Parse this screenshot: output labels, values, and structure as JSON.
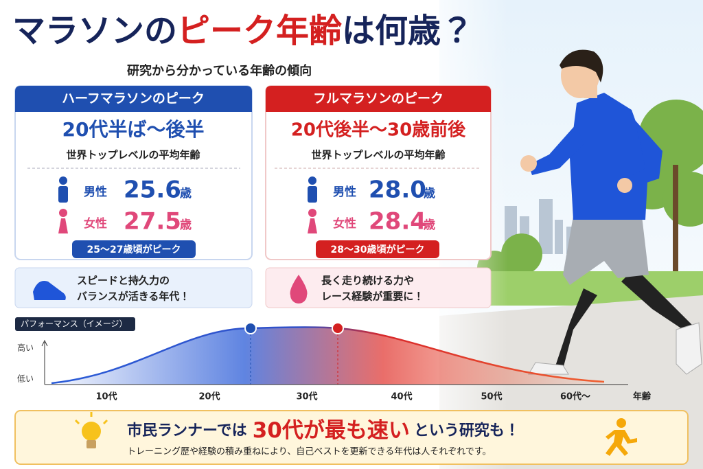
{
  "header": {
    "title": [
      "マラソンの",
      "ピーク年齢",
      "は何歳？"
    ],
    "subtitle": "研究から分かっている年齢の傾向"
  },
  "cards": [
    {
      "header": "ハーフマラソンのピーク",
      "range": "20代半ば～後半",
      "note": "世界トップレベルの平均年齢",
      "male": {
        "label": "男性",
        "age": "25.6",
        "unit": "歳"
      },
      "female": {
        "label": "女性",
        "age": "27.5",
        "unit": "歳"
      },
      "badge": "25～27歳頃がピーク",
      "tip": [
        "スピードと持久力の",
        "バランスが活きる年代！"
      ]
    },
    {
      "header": "フルマラソンのピーク",
      "range": "20代後半～30歳前後",
      "note": "世界トップレベルの平均年齢",
      "male": {
        "label": "男性",
        "age": "28.0",
        "unit": "歳"
      },
      "female": {
        "label": "女性",
        "age": "28.4",
        "unit": "歳"
      },
      "badge": "28～30歳頃がピーク",
      "tip": [
        "長く走り続ける力や",
        "レース経験が重要に！"
      ]
    }
  ],
  "curve": {
    "label": "パフォーマンス（イメージ）",
    "high": "高い",
    "low": "低い",
    "x_labels": [
      "10代",
      "20代",
      "30代",
      "40代",
      "50代",
      "60代～"
    ],
    "x_title": "年齢"
  },
  "banner": {
    "line1": [
      "市民ランナーでは",
      "30代が最も速い",
      "という研究も！"
    ],
    "line2": "トレーニング歴や経験の積み重ねにより、自己ベストを更新できる年代は人それぞれです。"
  }
}
